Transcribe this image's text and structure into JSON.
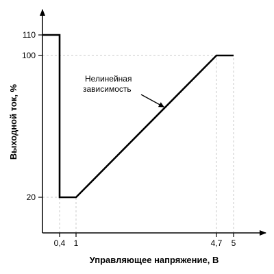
{
  "chart_data": {
    "type": "line",
    "title": "",
    "xlabel": "Управляющее напряжение, В",
    "ylabel": "Выходной ток, %",
    "x_ticks": [
      {
        "value": 0.4,
        "label": "0,4"
      },
      {
        "value": 1,
        "label": "1"
      },
      {
        "value": 4.7,
        "label": "4,7"
      },
      {
        "value": 5,
        "label": "5"
      }
    ],
    "y_ticks": [
      {
        "value": 20,
        "label": "20"
      },
      {
        "value": 100,
        "label": "100"
      },
      {
        "value": 110,
        "label": "110"
      }
    ],
    "series": [
      {
        "x": [
          0,
          0.4,
          0.4,
          1,
          4.7,
          5
        ],
        "y": [
          110,
          110,
          20,
          20,
          100,
          100
        ]
      }
    ],
    "annotation": {
      "lines": [
        "Нелинейная",
        "зависимость"
      ],
      "points_to": {
        "x": 2.85,
        "y": 60
      }
    },
    "grid": false,
    "guide_lines": "dashed",
    "colors": {
      "line": "#000000",
      "guide": "#c8c8c8"
    }
  }
}
